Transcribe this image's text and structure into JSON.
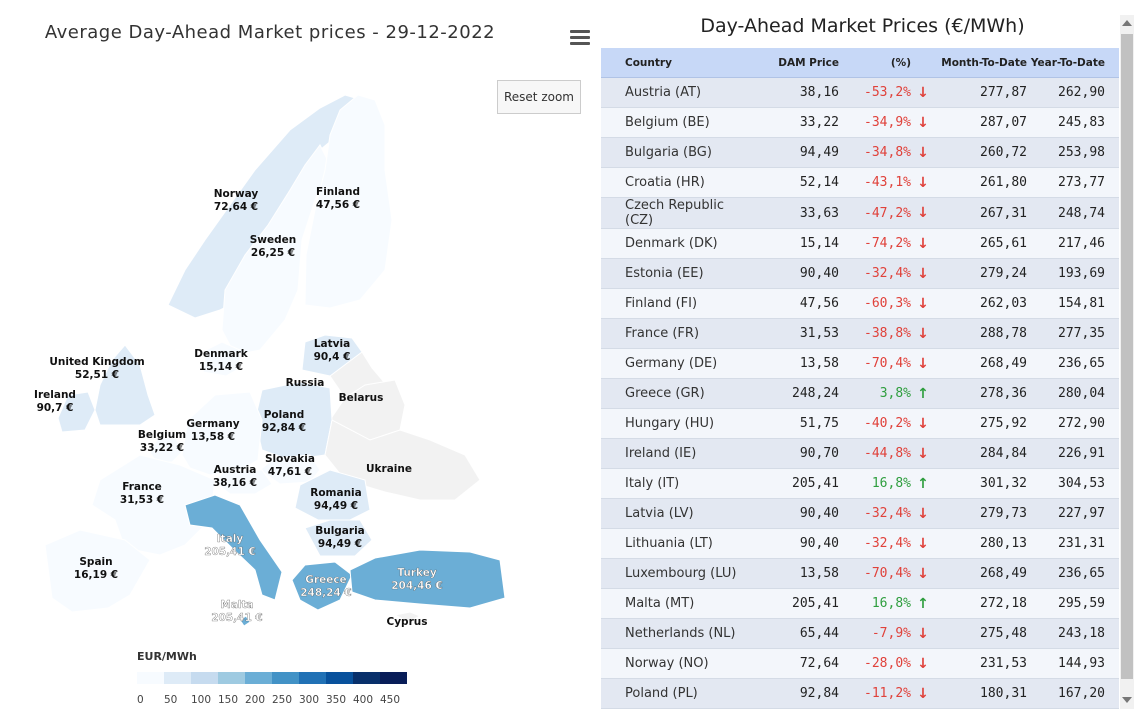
{
  "map": {
    "title": "Average Day-Ahead Market prices - 29-12-2022",
    "reset_zoom": "Reset zoom",
    "menu_icon": "hamburger-menu-icon",
    "legend_title": "EUR/MWh",
    "legend_ticks": [
      "0",
      "50",
      "100",
      "150",
      "200",
      "250",
      "300",
      "350",
      "400",
      "450"
    ],
    "legend_range": [
      0,
      500
    ],
    "colors": {
      "low": "#f7fbff",
      "high": "#08306b",
      "no_data": "#f2f2f2",
      "border": "#ffffff"
    },
    "regions": [
      {
        "name": "Norway",
        "value": 72.64,
        "label": "72,64 €"
      },
      {
        "name": "Sweden",
        "value": 26.25,
        "label": "26,25 €"
      },
      {
        "name": "Finland",
        "value": 47.56,
        "label": "47,56 €"
      },
      {
        "name": "Denmark",
        "value": 15.14,
        "label": "15,14 €"
      },
      {
        "name": "Latvia",
        "value": 90.4,
        "label": "90,4 €"
      },
      {
        "name": "Russia",
        "value": null,
        "label": ""
      },
      {
        "name": "Belarus",
        "value": null,
        "label": ""
      },
      {
        "name": "United Kingdom",
        "value": 52.51,
        "label": "52,51 €"
      },
      {
        "name": "Ireland",
        "value": 90.7,
        "label": "90,7 €"
      },
      {
        "name": "Poland",
        "value": 92.84,
        "label": "92,84 €"
      },
      {
        "name": "Belgium",
        "value": 33.22,
        "label": "33,22 €"
      },
      {
        "name": "Germany",
        "value": 13.58,
        "label": "13,58 €"
      },
      {
        "name": "Ukraine",
        "value": null,
        "label": ""
      },
      {
        "name": "Slovakia",
        "value": 47.61,
        "label": "47,61 €"
      },
      {
        "name": "Austria",
        "value": 38.16,
        "label": "38,16 €"
      },
      {
        "name": "France",
        "value": 31.53,
        "label": "31,53 €"
      },
      {
        "name": "Romania",
        "value": 94.49,
        "label": "94,49 €"
      },
      {
        "name": "Bulgaria",
        "value": 94.49,
        "label": "94,49 €"
      },
      {
        "name": "Italy",
        "value": 205.41,
        "label": "205,41 €"
      },
      {
        "name": "Spain",
        "value": 16.19,
        "label": "16,19 €"
      },
      {
        "name": "Greece",
        "value": 248.24,
        "label": "248,24 €"
      },
      {
        "name": "Turkey",
        "value": 204.46,
        "label": "204,46 €"
      },
      {
        "name": "Malta",
        "value": 205.41,
        "label": "205,41 €"
      },
      {
        "name": "Cyprus",
        "value": null,
        "label": ""
      }
    ]
  },
  "table": {
    "title": "Day-Ahead Market Prices (€/MWh)",
    "headers": [
      "Country",
      "DAM Price",
      "(%)",
      "Month-To-Date",
      "Year-To-Date"
    ],
    "rows": [
      {
        "country": "Austria (AT)",
        "price": "38,16",
        "pct": "-53,2%",
        "dir": "down",
        "mtd": "277,87",
        "ytd": "262,90"
      },
      {
        "country": "Belgium (BE)",
        "price": "33,22",
        "pct": "-34,9%",
        "dir": "down",
        "mtd": "287,07",
        "ytd": "245,83"
      },
      {
        "country": "Bulgaria (BG)",
        "price": "94,49",
        "pct": "-34,8%",
        "dir": "down",
        "mtd": "260,72",
        "ytd": "253,98"
      },
      {
        "country": "Croatia (HR)",
        "price": "52,14",
        "pct": "-43,1%",
        "dir": "down",
        "mtd": "261,80",
        "ytd": "273,77"
      },
      {
        "country": "Czech Republic (CZ)",
        "price": "33,63",
        "pct": "-47,2%",
        "dir": "down",
        "mtd": "267,31",
        "ytd": "248,74"
      },
      {
        "country": "Denmark (DK)",
        "price": "15,14",
        "pct": "-74,2%",
        "dir": "down",
        "mtd": "265,61",
        "ytd": "217,46"
      },
      {
        "country": "Estonia (EE)",
        "price": "90,40",
        "pct": "-32,4%",
        "dir": "down",
        "mtd": "279,24",
        "ytd": "193,69"
      },
      {
        "country": "Finland (FI)",
        "price": "47,56",
        "pct": "-60,3%",
        "dir": "down",
        "mtd": "262,03",
        "ytd": "154,81"
      },
      {
        "country": "France (FR)",
        "price": "31,53",
        "pct": "-38,8%",
        "dir": "down",
        "mtd": "288,78",
        "ytd": "277,35"
      },
      {
        "country": "Germany (DE)",
        "price": "13,58",
        "pct": "-70,4%",
        "dir": "down",
        "mtd": "268,49",
        "ytd": "236,65"
      },
      {
        "country": "Greece (GR)",
        "price": "248,24",
        "pct": "3,8%",
        "dir": "up",
        "mtd": "278,36",
        "ytd": "280,04"
      },
      {
        "country": "Hungary (HU)",
        "price": "51,75",
        "pct": "-40,2%",
        "dir": "down",
        "mtd": "275,92",
        "ytd": "272,90"
      },
      {
        "country": "Ireland (IE)",
        "price": "90,70",
        "pct": "-44,8%",
        "dir": "down",
        "mtd": "284,84",
        "ytd": "226,91"
      },
      {
        "country": "Italy (IT)",
        "price": "205,41",
        "pct": "16,8%",
        "dir": "up",
        "mtd": "301,32",
        "ytd": "304,53"
      },
      {
        "country": "Latvia (LV)",
        "price": "90,40",
        "pct": "-32,4%",
        "dir": "down",
        "mtd": "279,73",
        "ytd": "227,97"
      },
      {
        "country": "Lithuania (LT)",
        "price": "90,40",
        "pct": "-32,4%",
        "dir": "down",
        "mtd": "280,13",
        "ytd": "231,31"
      },
      {
        "country": "Luxembourg (LU)",
        "price": "13,58",
        "pct": "-70,4%",
        "dir": "down",
        "mtd": "268,49",
        "ytd": "236,65"
      },
      {
        "country": "Malta (MT)",
        "price": "205,41",
        "pct": "16,8%",
        "dir": "up",
        "mtd": "272,18",
        "ytd": "295,59"
      },
      {
        "country": "Netherlands (NL)",
        "price": "65,44",
        "pct": "-7,9%",
        "dir": "down",
        "mtd": "275,48",
        "ytd": "243,18"
      },
      {
        "country": "Norway (NO)",
        "price": "72,64",
        "pct": "-28,0%",
        "dir": "down",
        "mtd": "231,53",
        "ytd": "144,93"
      },
      {
        "country": "Poland (PL)",
        "price": "92,84",
        "pct": "-11,2%",
        "dir": "down",
        "mtd": "180,31",
        "ytd": "167,20"
      }
    ],
    "arrow_icons": {
      "down": "arrow-down-icon",
      "up": "arrow-up-icon"
    },
    "colors": {
      "header_bg": "#c7d8f7",
      "down": "#e0413a",
      "up": "#2e9e3e"
    }
  }
}
